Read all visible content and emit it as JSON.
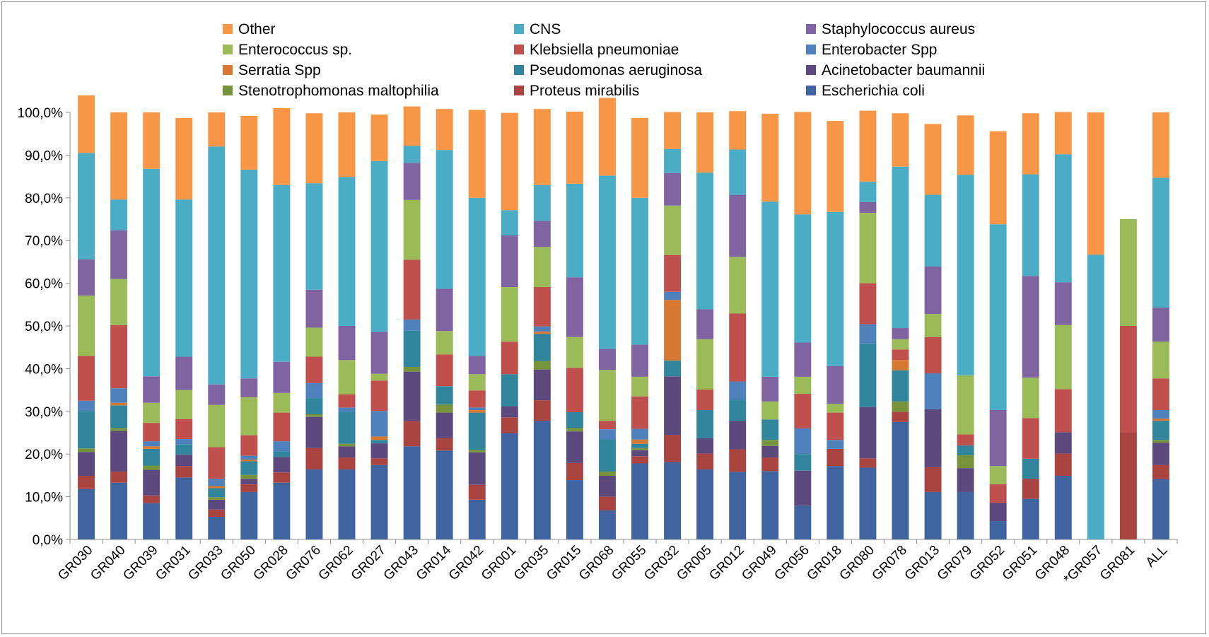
{
  "chart_data": {
    "type": "bar",
    "stacked": true,
    "percent": true,
    "title": "",
    "xlabel": "",
    "ylabel": "",
    "ylim": [
      0,
      100
    ],
    "y_ticks": [
      "0,0%",
      "10,0%",
      "20,0%",
      "30,0%",
      "40,0%",
      "50,0%",
      "60,0%",
      "70,0%",
      "80,0%",
      "90,0%",
      "100,0%"
    ],
    "grid": false,
    "legend_position": "top",
    "categories": [
      "GR030",
      "GR040",
      "GR039",
      "GR031",
      "GR033",
      "GR050",
      "GR028",
      "GR076",
      "GR062",
      "GR027",
      "GR043",
      "GR014",
      "GR042",
      "GR001",
      "GR035",
      "GR015",
      "GR068",
      "GR055",
      "GR032",
      "GR005",
      "GR012",
      "GR049",
      "GR056",
      "GR018",
      "GR080",
      "GR078",
      "GR013",
      "GR079",
      "GR052",
      "GR051",
      "GR048",
      "*GR057",
      "GR081",
      "ALL"
    ],
    "series": [
      {
        "name": "Escherichia coli",
        "color": "#3f64a0",
        "values": [
          11.8,
          13.3,
          8.5,
          14.5,
          5.3,
          11.1,
          13.3,
          16.4,
          16.4,
          17.4,
          21.8,
          20.8,
          9.3,
          24.9,
          27.8,
          13.9,
          6.8,
          17.8,
          18.1,
          16.4,
          15.8,
          16.0,
          7.9,
          17.2,
          16.8,
          27.5,
          11.1,
          11.1,
          4.3,
          9.5,
          14.9,
          0,
          0,
          14.1
        ]
      },
      {
        "name": "Proteus mirabilis",
        "color": "#a94441",
        "values": [
          3.1,
          2.6,
          1.8,
          2.7,
          1.7,
          1.8,
          2.4,
          5.0,
          2.8,
          1.6,
          5.9,
          2.9,
          3.5,
          3.7,
          4.8,
          4.0,
          3.2,
          1.7,
          6.4,
          3.7,
          5.3,
          3.2,
          0,
          4.0,
          2.2,
          2.4,
          5.8,
          0,
          0,
          4.7,
          5.2,
          0,
          25.0,
          3.3
        ]
      },
      {
        "name": "Acinetobacter baumannii",
        "color": "#5c4a7e",
        "values": [
          5.6,
          9.5,
          6.0,
          2.7,
          2.3,
          1.3,
          3.6,
          7.3,
          2.6,
          3.5,
          11.6,
          6.0,
          7.6,
          2.6,
          7.2,
          7.4,
          4.9,
          1.4,
          13.7,
          3.6,
          6.7,
          2.7,
          8.2,
          0,
          12.0,
          0,
          13.6,
          5.6,
          4.3,
          0,
          5.0,
          0,
          0,
          5.3
        ]
      },
      {
        "name": "Stenotrophomonas maltophilia",
        "color": "#77933c",
        "values": [
          0.8,
          0.7,
          1.0,
          0,
          0.6,
          0.9,
          0,
          0.6,
          0.6,
          0,
          1.1,
          1.9,
          0.6,
          0,
          2.0,
          0.8,
          1.0,
          0.5,
          0,
          0,
          0,
          1.4,
          0,
          0,
          0,
          2.4,
          0,
          3.0,
          0,
          0,
          0,
          0,
          0,
          0.6
        ]
      },
      {
        "name": "Pseudomonas aeruginosa",
        "color": "#31859c",
        "values": [
          8.8,
          5.3,
          3.9,
          2.4,
          2.1,
          3.2,
          1.3,
          3.8,
          7.5,
          0.8,
          8.5,
          4.3,
          8.7,
          7.5,
          6.3,
          3.7,
          7.6,
          1.0,
          3.7,
          6.6,
          5.0,
          4.8,
          3.9,
          0,
          14.9,
          7.3,
          0,
          2.3,
          0,
          4.7,
          0,
          0,
          0,
          4.5
        ]
      },
      {
        "name": "Serratia Spp",
        "color": "#d67a33",
        "values": [
          0,
          0.6,
          0.6,
          0,
          0.5,
          0.4,
          0,
          0,
          0,
          0.8,
          0,
          0,
          0.6,
          0,
          0.6,
          0,
          0,
          1.0,
          14.2,
          0,
          0,
          0,
          0,
          0,
          0,
          2.4,
          0,
          0,
          0,
          0,
          0,
          0,
          0,
          0.5
        ]
      },
      {
        "name": "Enterobacter Spp",
        "color": "#4f81bd",
        "values": [
          2.4,
          3.4,
          1.2,
          1.2,
          1.7,
          0.9,
          2.4,
          3.5,
          1.0,
          6.0,
          2.6,
          0,
          0.6,
          0,
          1.2,
          0,
          2.3,
          2.5,
          1.9,
          0,
          4.2,
          0,
          6.0,
          2.1,
          4.5,
          0,
          8.4,
          0,
          0,
          0,
          0,
          0,
          0,
          2.0
        ]
      },
      {
        "name": "Klebsiella pneumoniae",
        "color": "#c0504d",
        "values": [
          10.5,
          14.8,
          4.3,
          4.7,
          7.4,
          4.8,
          6.7,
          6.2,
          3.1,
          7.1,
          14.0,
          7.4,
          4.0,
          7.6,
          9.2,
          10.4,
          2.0,
          7.6,
          8.6,
          4.8,
          15.9,
          0,
          8.1,
          6.4,
          9.6,
          2.5,
          8.5,
          2.6,
          4.3,
          9.5,
          10.1,
          0,
          25.0,
          7.4
        ]
      },
      {
        "name": "Enterococcus sp.",
        "color": "#9bbb59",
        "values": [
          14.1,
          10.8,
          4.7,
          6.8,
          9.9,
          8.9,
          4.6,
          6.8,
          8.0,
          1.6,
          14.0,
          5.5,
          3.8,
          12.8,
          9.4,
          7.2,
          11.9,
          4.6,
          11.6,
          11.8,
          13.3,
          4.2,
          4.0,
          2.1,
          16.5,
          2.4,
          5.4,
          13.8,
          4.3,
          9.5,
          15.0,
          0,
          25.0,
          8.6
        ]
      },
      {
        "name": "Staphylococcus aureus",
        "color": "#8064a2",
        "values": [
          8.5,
          11.4,
          6.2,
          7.8,
          4.8,
          4.4,
          7.3,
          8.9,
          8.0,
          9.8,
          8.7,
          9.9,
          4.3,
          12.1,
          6.1,
          14.0,
          4.9,
          7.5,
          7.6,
          7.0,
          14.5,
          5.8,
          8.0,
          8.8,
          2.5,
          2.6,
          11.1,
          0,
          13.1,
          23.8,
          10.0,
          0,
          0,
          8.0
        ]
      },
      {
        "name": "CNS",
        "color": "#4bacc6",
        "values": [
          24.9,
          7.2,
          48.6,
          36.8,
          55.7,
          48.9,
          41.4,
          24.9,
          34.9,
          40.0,
          4.0,
          32.5,
          37.0,
          5.9,
          8.4,
          21.9,
          40.6,
          34.4,
          5.6,
          32.0,
          10.6,
          41.0,
          30.0,
          36.1,
          4.8,
          37.8,
          16.8,
          47.0,
          43.5,
          23.8,
          30.0,
          66.7,
          0,
          30.4
        ]
      },
      {
        "name": "Other",
        "color": "#f79646",
        "values": [
          13.5,
          20.4,
          13.2,
          19.1,
          8.0,
          12.6,
          18.0,
          16.4,
          15.1,
          10.9,
          9.2,
          9.6,
          20.6,
          22.8,
          17.8,
          16.9,
          18.2,
          18.7,
          8.7,
          14.1,
          9.0,
          20.6,
          24.0,
          21.3,
          16.6,
          12.5,
          16.6,
          13.9,
          21.8,
          14.3,
          9.9,
          33.3,
          0,
          15.3
        ]
      }
    ],
    "legend_order": [
      "Other",
      "CNS",
      "Staphylococcus aureus",
      "Enterococcus sp.",
      "Klebsiella pneumoniae",
      "Enterobacter Spp",
      "Serratia Spp",
      "Pseudomonas aeruginosa",
      "Acinetobacter baumannii",
      "Stenotrophomonas maltophilia",
      "Proteus mirabilis",
      "Escherichia coli"
    ]
  }
}
